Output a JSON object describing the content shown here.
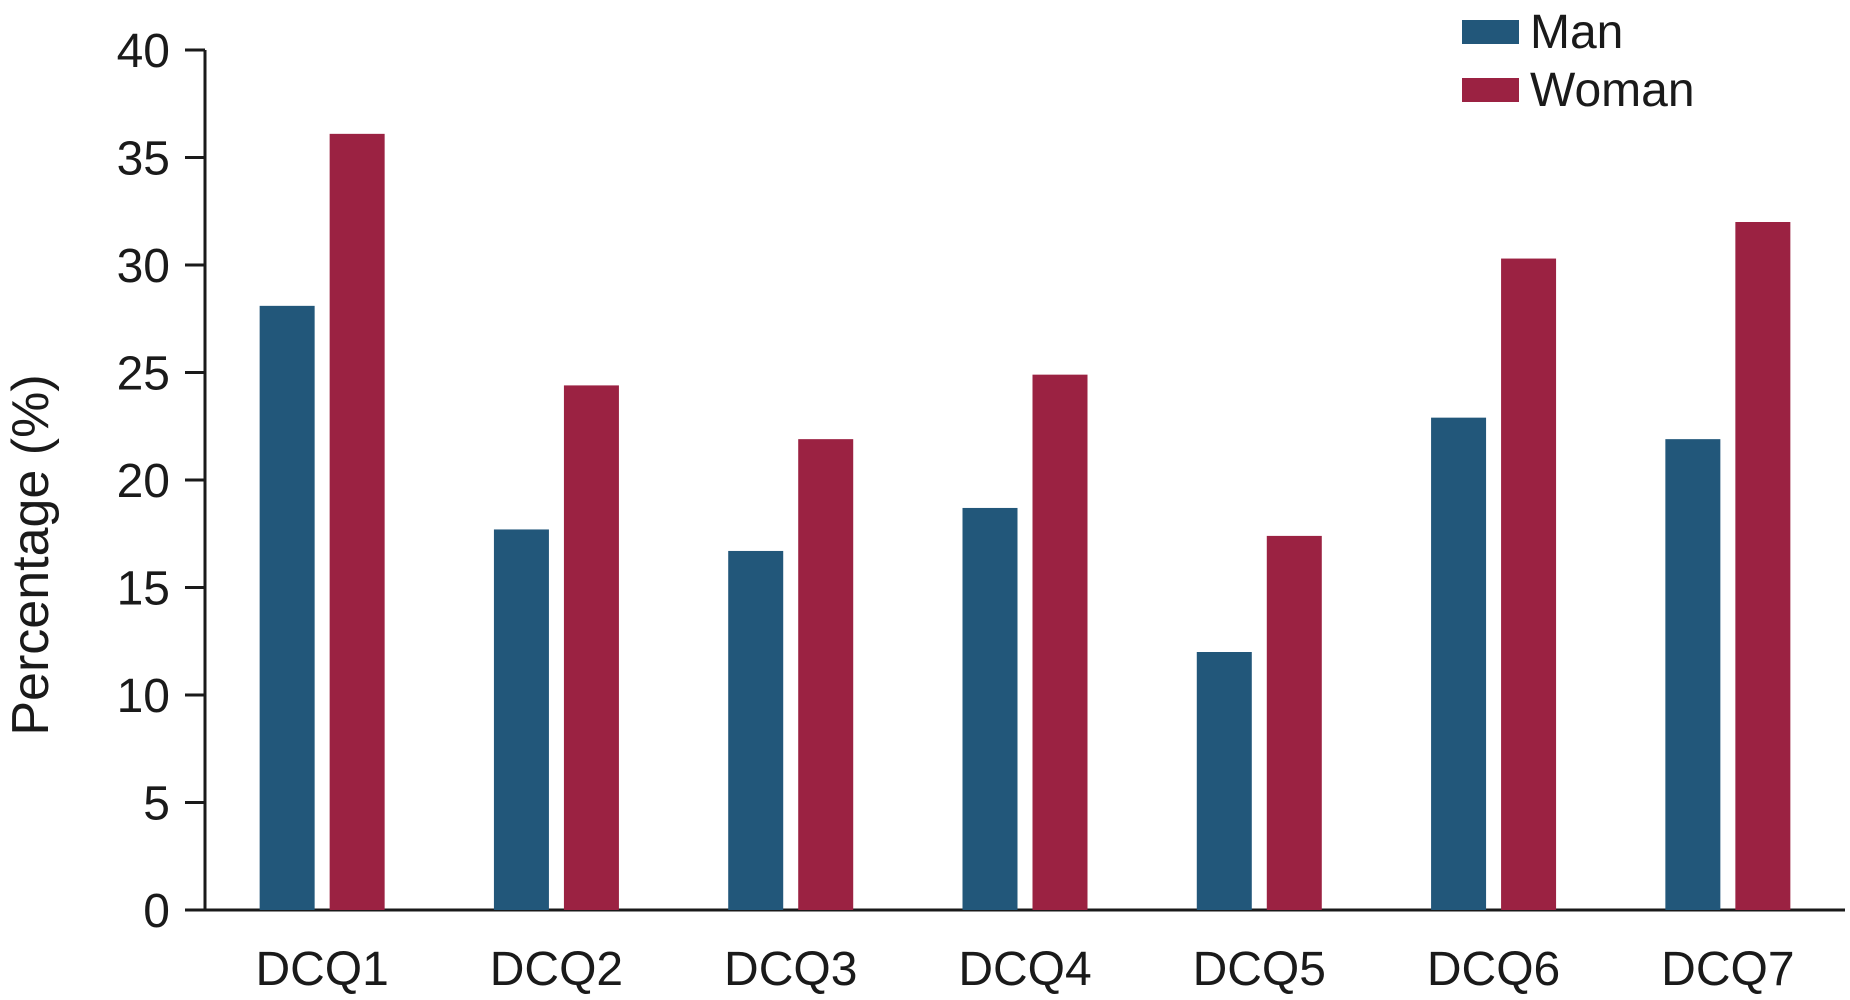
{
  "chart_data": {
    "type": "bar",
    "title": "",
    "xlabel": "",
    "ylabel": "Percentage (%)",
    "ylim": [
      0,
      40
    ],
    "yticks": [
      0,
      5,
      10,
      15,
      20,
      25,
      30,
      35,
      40
    ],
    "grid": false,
    "legend_position": "top-right",
    "categories": [
      "DCQ1",
      "DCQ2",
      "DCQ3",
      "DCQ4",
      "DCQ5",
      "DCQ6",
      "DCQ7"
    ],
    "series": [
      {
        "name": "Man",
        "color": "#22577a",
        "values": [
          28.1,
          17.7,
          16.7,
          18.7,
          12.0,
          22.9,
          21.9
        ]
      },
      {
        "name": "Woman",
        "color": "#9b2242",
        "values": [
          36.1,
          24.4,
          21.9,
          24.9,
          17.4,
          30.3,
          32.0
        ]
      }
    ]
  }
}
